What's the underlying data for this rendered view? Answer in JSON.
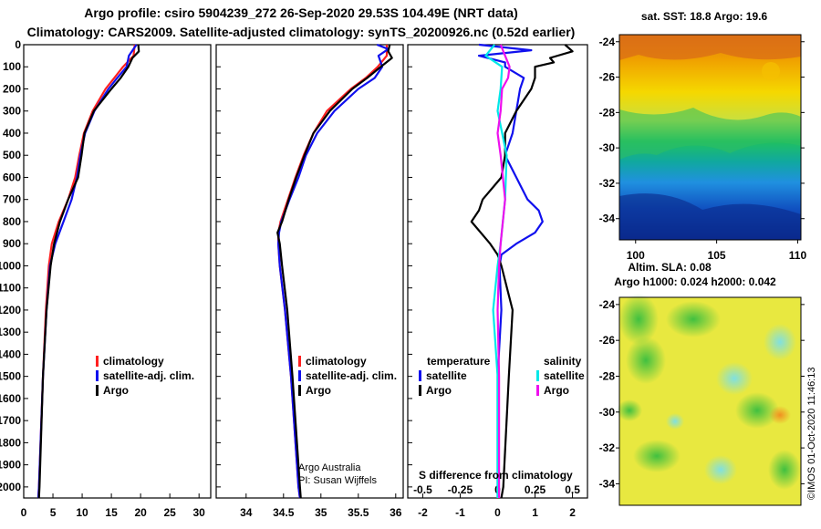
{
  "title_line1": "Argo profile: csiro 5904239_272 26-Sep-2020 29.53S 104.49E (NRT data)",
  "title_line2": "Climatology: CARS2009. Satellite-adjusted climatology: synTS_20200926.nc (0.52d earlier)",
  "colors": {
    "climatology": "#ff2020",
    "satellite": "#1010ee",
    "argo": "#000000",
    "sat_salinity": "#00e8e8",
    "argo_salinity": "#ee10ee"
  },
  "chart_data": [
    {
      "type": "line",
      "name": "temperature-profile",
      "xlabel": "",
      "ylabel": "Depth",
      "xlim": [
        0,
        32
      ],
      "ylim": [
        0,
        2050
      ],
      "xticks": [
        0,
        5,
        10,
        15,
        20,
        25,
        30
      ],
      "yticks": [
        0,
        100,
        200,
        300,
        400,
        500,
        600,
        700,
        800,
        900,
        1000,
        1100,
        1200,
        1300,
        1400,
        1500,
        1600,
        1700,
        1800,
        1900,
        2000
      ],
      "legend": [
        "climatology",
        "satellite-adj. clim.",
        "Argo"
      ],
      "series": [
        {
          "name": "climatology",
          "color_key": "climatology",
          "depth": [
            0,
            50,
            100,
            150,
            200,
            300,
            400,
            500,
            600,
            700,
            800,
            900,
            1000,
            1200,
            1500,
            2000,
            2050
          ],
          "values": [
            19.0,
            18.8,
            17.0,
            15.5,
            14.0,
            11.8,
            10.3,
            9.5,
            8.8,
            7.6,
            6.0,
            4.8,
            4.3,
            3.8,
            3.3,
            2.6,
            2.5
          ]
        },
        {
          "name": "satellite-adj. clim.",
          "color_key": "satellite",
          "depth": [
            0,
            50,
            100,
            150,
            200,
            300,
            400,
            500,
            600,
            700,
            800,
            900,
            1000,
            1200,
            1500,
            2000,
            2050
          ],
          "values": [
            19.3,
            18.0,
            17.6,
            16.0,
            14.5,
            12.1,
            10.5,
            9.7,
            9.1,
            8.2,
            6.8,
            5.4,
            4.5,
            3.9,
            3.3,
            2.6,
            2.5
          ]
        },
        {
          "name": "Argo",
          "color_key": "argo",
          "depth": [
            0,
            30,
            60,
            100,
            150,
            200,
            300,
            400,
            500,
            600,
            700,
            800,
            900,
            1000,
            1200,
            1500,
            2000,
            2050
          ],
          "values": [
            19.6,
            19.7,
            18.6,
            17.9,
            16.6,
            15.0,
            12.0,
            10.4,
            9.9,
            9.3,
            7.6,
            6.2,
            5.2,
            4.6,
            3.9,
            3.3,
            2.7,
            2.6
          ]
        }
      ]
    },
    {
      "type": "line",
      "name": "salinity-profile",
      "xlabel": "",
      "ylabel": "Depth",
      "xlim": [
        33.6,
        36.1
      ],
      "ylim": [
        0,
        2050
      ],
      "xticks": [
        34,
        34.5,
        35,
        35.5,
        36
      ],
      "xticklabels": [
        "34",
        "34.5",
        "35",
        "35.5",
        "36"
      ],
      "legend": [
        "climatology",
        "satellite-adj. clim.",
        "Argo"
      ],
      "annotations": [
        "Argo Australia",
        "PI: Susan Wijffels"
      ],
      "series": [
        {
          "name": "climatology",
          "color_key": "climatology",
          "depth": [
            0,
            50,
            100,
            150,
            200,
            300,
            400,
            500,
            600,
            700,
            800,
            850,
            900,
            1000,
            1200,
            1500,
            2000,
            2050
          ],
          "values": [
            35.88,
            35.88,
            35.76,
            35.6,
            35.4,
            35.08,
            34.9,
            34.77,
            34.66,
            34.56,
            34.46,
            34.43,
            34.43,
            34.45,
            34.52,
            34.6,
            34.7,
            34.72
          ]
        },
        {
          "name": "satellite-adj. clim.",
          "color_key": "satellite",
          "depth": [
            0,
            20,
            50,
            100,
            150,
            200,
            300,
            400,
            500,
            600,
            700,
            800,
            850,
            900,
            1000,
            1200,
            1500,
            2000,
            2050
          ],
          "values": [
            35.75,
            35.9,
            35.77,
            35.82,
            35.72,
            35.5,
            35.18,
            34.95,
            34.8,
            34.7,
            34.58,
            34.47,
            34.44,
            34.43,
            34.45,
            34.52,
            34.6,
            34.7,
            34.72
          ]
        },
        {
          "name": "Argo",
          "color_key": "argo",
          "depth": [
            0,
            30,
            60,
            100,
            150,
            200,
            300,
            400,
            500,
            600,
            700,
            800,
            850,
            900,
            1000,
            1200,
            1500,
            2000,
            2050
          ],
          "values": [
            35.92,
            35.9,
            35.95,
            35.8,
            35.62,
            35.42,
            35.12,
            34.9,
            34.78,
            34.67,
            34.57,
            34.48,
            34.42,
            34.45,
            34.48,
            34.55,
            34.62,
            34.72,
            34.73
          ]
        }
      ]
    },
    {
      "type": "line",
      "name": "difference-from-climatology",
      "xlabel": "S difference from climatology",
      "xlim": [
        -2.4,
        2.4
      ],
      "ylim": [
        0,
        2050
      ],
      "xticks": [
        -2,
        -1,
        0,
        1,
        2
      ],
      "s_ticks": [
        -0.5,
        -0.25,
        0,
        0.25,
        0.5
      ],
      "s_ticklabels": [
        "-0.5",
        "-0.25",
        "0",
        "0.25",
        "0.5"
      ],
      "legend": {
        "temperature_heading": "temperature",
        "salinity_heading": "salinity",
        "temperature": [
          "satellite",
          "Argo"
        ],
        "salinity": [
          "satellite",
          "Argo"
        ]
      },
      "series": [
        {
          "name": "temperature satellite",
          "color_key": "satellite",
          "depth": [
            0,
            25,
            50,
            80,
            100,
            150,
            200,
            300,
            400,
            500,
            600,
            700,
            750,
            800,
            850,
            900,
            950,
            1000,
            1200,
            1500,
            2000,
            2050
          ],
          "values": [
            -0.5,
            0.9,
            -0.5,
            0.2,
            0.2,
            0.7,
            0.6,
            0.5,
            0.4,
            0.2,
            0.5,
            0.8,
            1.1,
            1.2,
            1.0,
            0.5,
            0.1,
            0.05,
            0.1,
            0.0,
            0.0,
            0.0
          ]
        },
        {
          "name": "temperature Argo",
          "color_key": "argo",
          "depth": [
            0,
            30,
            60,
            80,
            100,
            150,
            200,
            300,
            400,
            500,
            600,
            700,
            750,
            800,
            900,
            950,
            1000,
            1200,
            1500,
            2000,
            2050
          ],
          "values": [
            1.8,
            2.0,
            1.4,
            1.5,
            1.0,
            1.0,
            0.9,
            0.5,
            0.2,
            0.2,
            0.1,
            -0.4,
            -0.5,
            -0.7,
            -0.2,
            0.0,
            0.1,
            0.4,
            0.3,
            0.15,
            0.1
          ]
        },
        {
          "name": "salinity satellite",
          "color_key": "sat_salinity",
          "depth": [
            0,
            50,
            100,
            200,
            300,
            500,
            700,
            900,
            1000,
            1200,
            1500,
            2000,
            2050
          ],
          "values": [
            -0.02,
            -0.08,
            0.03,
            0.02,
            0.0,
            0.06,
            0.05,
            0.02,
            0.0,
            -0.03,
            0.0,
            0.0,
            0.0
          ]
        },
        {
          "name": "salinity Argo",
          "color_key": "argo_salinity",
          "depth": [
            0,
            50,
            100,
            150,
            200,
            300,
            400,
            500,
            700,
            900,
            1000,
            1200,
            1500,
            2000,
            2050
          ],
          "values": [
            0.02,
            0.05,
            0.08,
            0.07,
            0.03,
            0.02,
            0.0,
            0.02,
            0.05,
            0.02,
            0.01,
            0.0,
            0.01,
            0.01,
            0.01
          ]
        }
      ]
    },
    {
      "type": "heatmap",
      "name": "sst-map",
      "title": "sat. SST: 18.8 Argo: 19.6",
      "xticks": [
        100,
        105,
        110
      ],
      "yticks": [
        -24,
        -26,
        -28,
        -30,
        -32,
        -34
      ],
      "xlim": [
        99,
        110.2
      ],
      "ylim": [
        -35.2,
        -23.6
      ]
    },
    {
      "type": "heatmap",
      "name": "sla-map",
      "title": "Altim. SLA: 0.08",
      "subtitle": "Argo h1000: 0.024 h2000: 0.042",
      "yticks": [
        -24,
        -26,
        -28,
        -30,
        -32,
        -34
      ],
      "ylim": [
        -35.2,
        -23.6
      ]
    }
  ],
  "watermark": "©IMOS 01-Oct-2020 11:46:13"
}
